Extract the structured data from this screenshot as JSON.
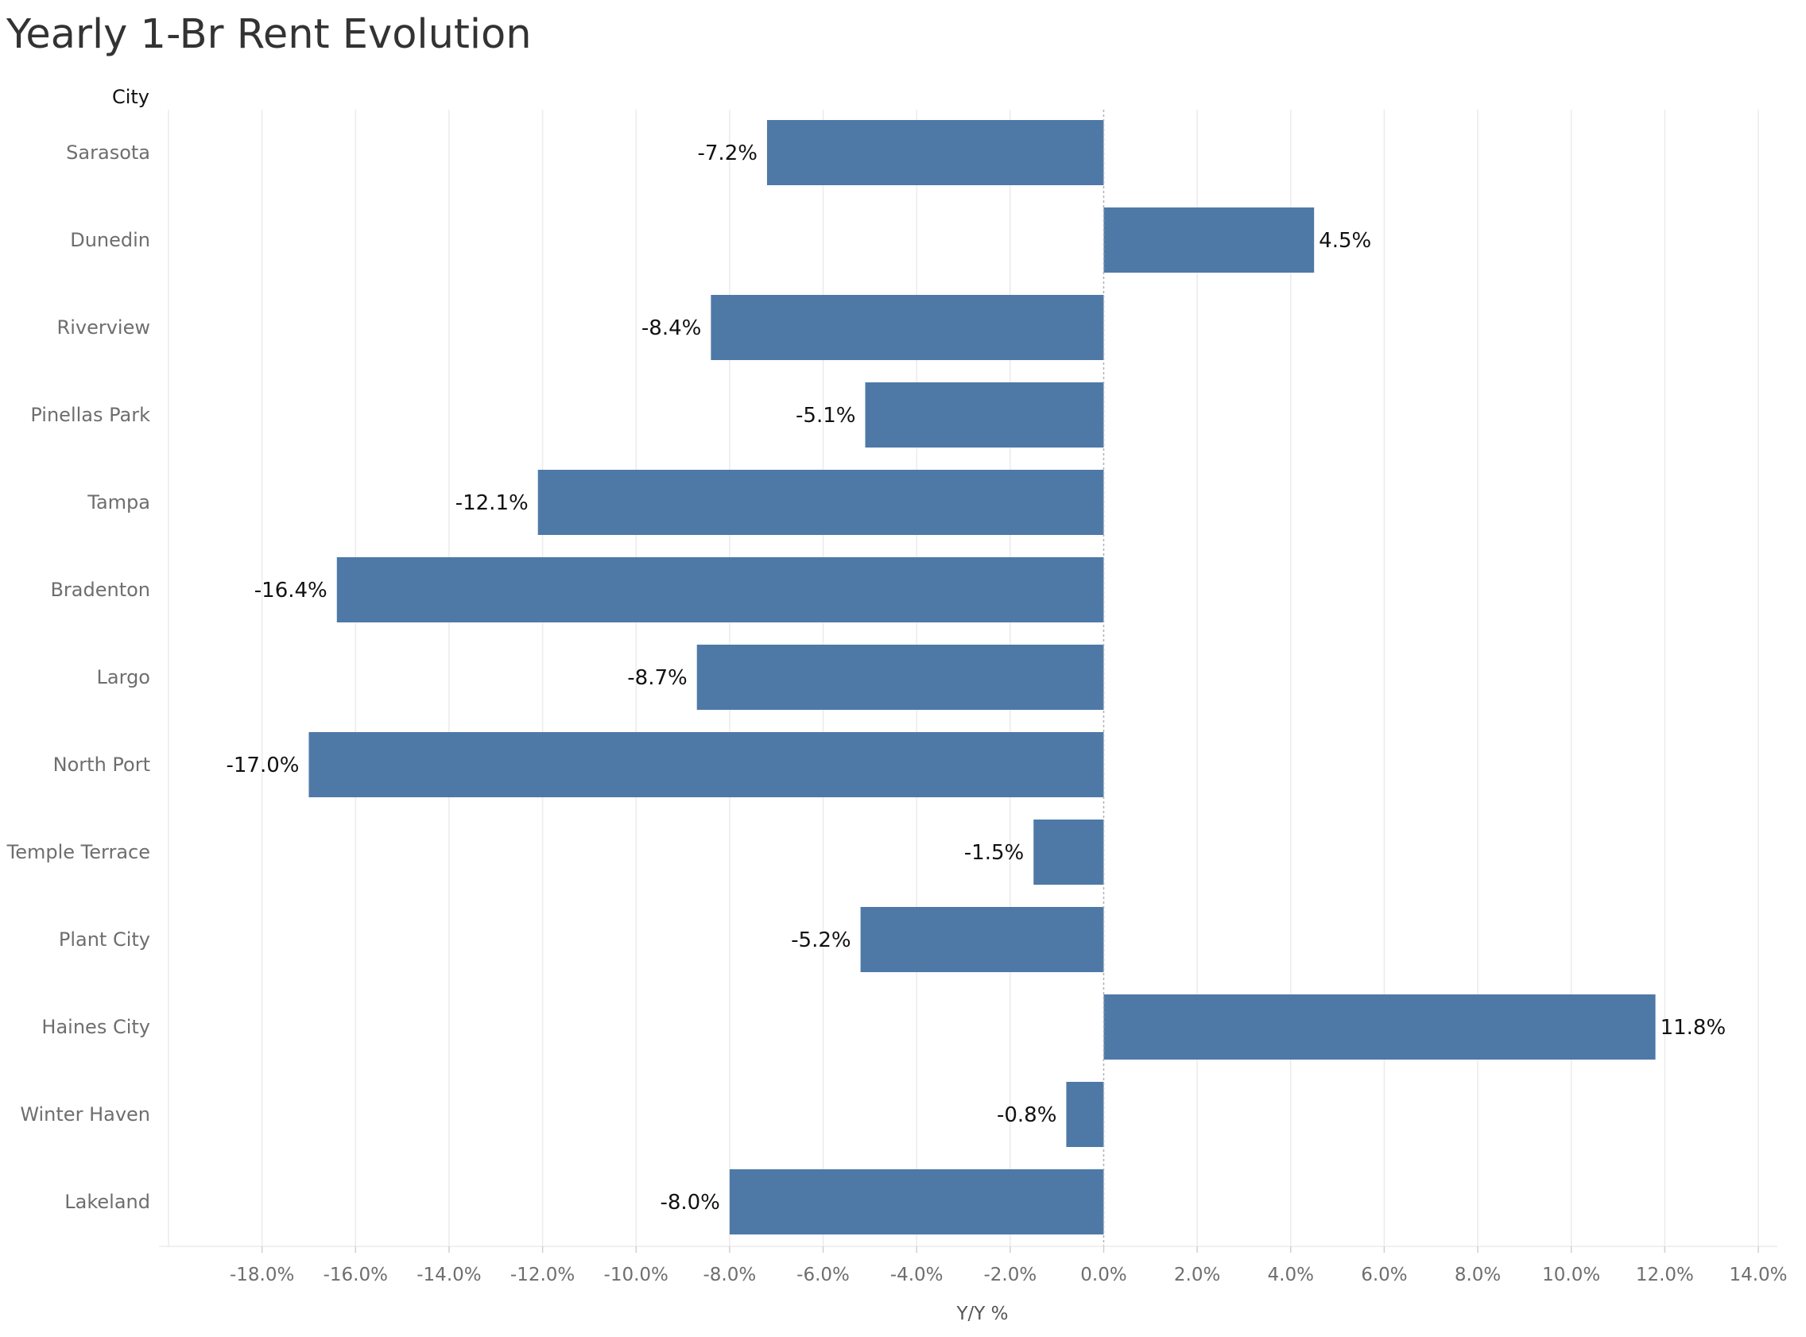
{
  "chart_data": {
    "type": "bar",
    "orientation": "horizontal",
    "title": "Yearly 1-Br Rent Evolution",
    "category_header": "City",
    "xlabel": "Y/Y %",
    "ylabel": "",
    "xlim": [
      -0.2,
      0.14
    ],
    "x_ticks": [
      -0.18,
      -0.16,
      -0.14,
      -0.12,
      -0.1,
      -0.08,
      -0.06,
      -0.04,
      -0.02,
      0.0,
      0.02,
      0.04,
      0.06,
      0.08,
      0.1,
      0.12,
      0.14
    ],
    "x_tick_labels": [
      "-18.0%",
      "-16.0%",
      "-14.0%",
      "-12.0%",
      "-10.0%",
      "-8.0%",
      "-6.0%",
      "-4.0%",
      "-2.0%",
      "0.0%",
      "2.0%",
      "4.0%",
      "6.0%",
      "8.0%",
      "10.0%",
      "12.0%",
      "14.0%"
    ],
    "categories": [
      "Sarasota",
      "Dunedin",
      "Riverview",
      "Pinellas Park",
      "Tampa",
      "Bradenton",
      "Largo",
      "North Port",
      "Temple Terrace",
      "Plant City",
      "Haines City",
      "Winter Haven",
      "Lakeland"
    ],
    "values": [
      -0.072,
      0.045,
      -0.084,
      -0.051,
      -0.121,
      -0.164,
      -0.087,
      -0.17,
      -0.015,
      -0.052,
      0.118,
      -0.008,
      -0.08
    ],
    "value_labels": [
      "-7.2%",
      "4.5%",
      "-8.4%",
      "-5.1%",
      "-12.1%",
      "-16.4%",
      "-8.7%",
      "-17.0%",
      "-1.5%",
      "-5.2%",
      "11.8%",
      "-0.8%",
      "-8.0%"
    ],
    "grid": true,
    "legend": "none",
    "colors": {
      "bar": "#4e79a7",
      "grid": "#ebebeb",
      "zero_line": "#b0b0b0"
    }
  }
}
